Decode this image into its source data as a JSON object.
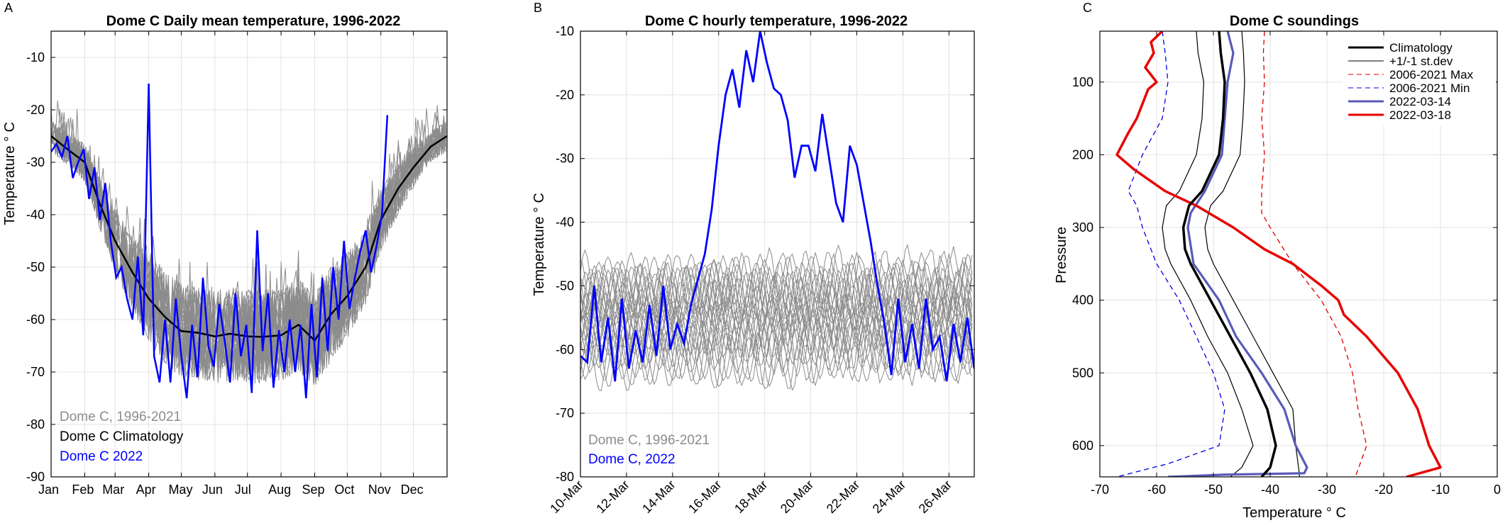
{
  "chart_data": [
    {
      "panel": "A",
      "type": "line",
      "title": "Dome C Daily mean temperature, 1996-2022",
      "xlabel": "",
      "ylabel": "Temperature ° C",
      "xlim": [
        0,
        365
      ],
      "ylim": [
        -90,
        -5
      ],
      "yticks": [
        -90,
        -80,
        -70,
        -60,
        -50,
        -40,
        -30,
        -20,
        -10
      ],
      "xticks": [
        {
          "x": 0,
          "label": "Jan"
        },
        {
          "x": 31,
          "label": "Feb"
        },
        {
          "x": 59,
          "label": "Mar"
        },
        {
          "x": 90,
          "label": "Apr"
        },
        {
          "x": 120,
          "label": "May"
        },
        {
          "x": 151,
          "label": "Jun"
        },
        {
          "x": 181,
          "label": "Jul"
        },
        {
          "x": 212,
          "label": "Aug"
        },
        {
          "x": 243,
          "label": "Sep"
        },
        {
          "x": 273,
          "label": "Oct"
        },
        {
          "x": 304,
          "label": "Nov"
        },
        {
          "x": 334,
          "label": "Dec"
        }
      ],
      "grid": true,
      "legend": {
        "placement": "bottom-left",
        "entries": [
          {
            "label": "Dome C, 1996-2021",
            "color": "#8c8c8c"
          },
          {
            "label": "Dome C Climatology",
            "color": "#000000"
          },
          {
            "label": "Dome C 2022",
            "color": "#0000ff"
          }
        ]
      },
      "series": [
        {
          "name": "Dome C Climatology",
          "color": "#000000",
          "x": [
            0,
            15,
            31,
            45,
            59,
            75,
            90,
            105,
            120,
            135,
            151,
            165,
            181,
            195,
            212,
            228,
            243,
            258,
            273,
            290,
            304,
            320,
            334,
            350,
            365
          ],
          "y": [
            -25,
            -27.5,
            -30,
            -38,
            -45,
            -51,
            -56,
            -59.5,
            -62.2,
            -62.5,
            -63.2,
            -62.7,
            -63.2,
            -63.3,
            -63,
            -61,
            -64,
            -59,
            -55.5,
            -50,
            -41,
            -35,
            -31,
            -27,
            -25
          ]
        },
        {
          "name": "Dome C 2022",
          "color": "#0000ff",
          "x": [
            0,
            5,
            10,
            15,
            20,
            25,
            30,
            35,
            40,
            45,
            50,
            55,
            60,
            65,
            70,
            75,
            80,
            85,
            90,
            95,
            100,
            105,
            110,
            115,
            120,
            125,
            130,
            135,
            140,
            145,
            150,
            155,
            160,
            165,
            170,
            175,
            180,
            185,
            190,
            195,
            200,
            205,
            210,
            215,
            220,
            225,
            230,
            235,
            240,
            245,
            250,
            255,
            260,
            265,
            270,
            275,
            280,
            285,
            290,
            295,
            300,
            305,
            310
          ],
          "y": [
            -28,
            -26.5,
            -29,
            -25,
            -33,
            -30,
            -27.5,
            -37,
            -31,
            -41,
            -34,
            -45,
            -52,
            -50,
            -56,
            -60,
            -48,
            -63,
            -15,
            -67,
            -72,
            -60,
            -72,
            -56,
            -67,
            -75,
            -61,
            -71,
            -52,
            -65,
            -69,
            -57,
            -64,
            -72,
            -55,
            -67,
            -61,
            -74,
            -43,
            -66,
            -55,
            -73,
            -62,
            -70,
            -60,
            -70,
            -61,
            -75,
            -57,
            -71,
            -52,
            -66,
            -50,
            -60,
            -45,
            -58,
            -52,
            -47,
            -43,
            -51,
            -46,
            -40,
            -21
          ]
        }
      ]
    },
    {
      "panel": "B",
      "type": "line",
      "title": "Dome C hourly temperature, 1996-2022",
      "xlabel": "",
      "ylabel": "Temperature ° C",
      "xlim": [
        10,
        27.1
      ],
      "ylim": [
        -80,
        -10
      ],
      "yticks": [
        -80,
        -70,
        -60,
        -50,
        -40,
        -30,
        -20,
        -10
      ],
      "xticks": [
        {
          "x": 10,
          "label": "10-Mar"
        },
        {
          "x": 12,
          "label": "12-Mar"
        },
        {
          "x": 14,
          "label": "14-Mar"
        },
        {
          "x": 16,
          "label": "16-Mar"
        },
        {
          "x": 18,
          "label": "18-Mar"
        },
        {
          "x": 20,
          "label": "20-Mar"
        },
        {
          "x": 22,
          "label": "22-Mar"
        },
        {
          "x": 24,
          "label": "24-Mar"
        },
        {
          "x": 26,
          "label": "26-Mar"
        }
      ],
      "grid": true,
      "legend": {
        "placement": "bottom-left",
        "entries": [
          {
            "label": "Dome C, 1996-2021",
            "color": "#8c8c8c"
          },
          {
            "label": "Dome C, 2022",
            "color": "#0000ff"
          }
        ]
      },
      "series": [
        {
          "name": "Dome C, 2022",
          "color": "#0000ff",
          "x": [
            10,
            10.3,
            10.6,
            10.9,
            11.2,
            11.5,
            11.8,
            12.1,
            12.4,
            12.7,
            13,
            13.3,
            13.6,
            13.9,
            14.2,
            14.5,
            14.8,
            15.1,
            15.4,
            15.7,
            16,
            16.3,
            16.6,
            16.9,
            17.2,
            17.5,
            17.8,
            18.1,
            18.4,
            18.7,
            19,
            19.3,
            19.6,
            19.9,
            20.2,
            20.5,
            20.8,
            21.1,
            21.4,
            21.7,
            22,
            22.3,
            22.6,
            22.9,
            23.2,
            23.5,
            23.8,
            24.1,
            24.4,
            24.7,
            25,
            25.3,
            25.6,
            25.9,
            26.2,
            26.5,
            26.8,
            27.1
          ],
          "y": [
            -61,
            -62,
            -50,
            -62,
            -55,
            -65,
            -52,
            -63,
            -57,
            -62,
            -53,
            -61,
            -50,
            -60,
            -56,
            -59,
            -53,
            -49,
            -45,
            -38,
            -28,
            -20,
            -16,
            -22,
            -13,
            -18,
            -10,
            -15,
            -19,
            -20,
            -24,
            -33,
            -28,
            -28,
            -32,
            -23,
            -30,
            -37,
            -40,
            -28,
            -31,
            -37,
            -43,
            -50,
            -56,
            -64,
            -52,
            -62,
            -56,
            -63,
            -52,
            -60,
            -58,
            -65,
            -56,
            -62,
            -55,
            -63
          ]
        }
      ]
    },
    {
      "panel": "C",
      "type": "line",
      "title": "Dome C soundings",
      "xlabel": "Temperature ° C",
      "ylabel": "Pressure",
      "xlim": [
        -70,
        0
      ],
      "ylim": [
        643,
        30
      ],
      "y_reversed": true,
      "xticks": [
        -70,
        -60,
        -50,
        -40,
        -30,
        -20,
        -10,
        0
      ],
      "yticks": [
        100,
        200,
        300,
        400,
        500,
        600
      ],
      "grid": true,
      "legend": {
        "placement": "top-right"
      },
      "series": [
        {
          "name": "Climatology",
          "color": "#000000",
          "y": [
            30,
            60,
            100,
            150,
            200,
            250,
            270,
            300,
            330,
            350,
            400,
            450,
            500,
            550,
            600,
            630,
            643
          ],
          "x": [
            -49,
            -48.7,
            -48,
            -48.3,
            -49,
            -52,
            -54.3,
            -55.3,
            -55,
            -54,
            -50.5,
            -47,
            -43.5,
            -40.5,
            -39,
            -40,
            -41.5
          ]
        },
        {
          "name": "+1/-1 st.dev",
          "color": "#000000",
          "y": [
            30,
            60,
            100,
            150,
            200,
            250,
            270,
            300,
            330,
            350,
            400,
            450,
            500,
            550,
            600,
            630,
            643
          ],
          "x": [
            -45,
            -44.7,
            -44.5,
            -44.8,
            -45.3,
            -48.3,
            -50.5,
            -51.5,
            -51,
            -50,
            -46.5,
            -43,
            -39.5,
            -36,
            -35.5,
            -35,
            -34.8
          ]
        },
        {
          "name": "+1/-1 st.dev lower",
          "color": "#000000",
          "y": [
            30,
            60,
            100,
            150,
            200,
            250,
            270,
            300,
            330,
            350,
            400,
            450,
            500,
            550,
            600,
            630,
            643
          ],
          "x": [
            -53,
            -52.7,
            -51.7,
            -52,
            -53,
            -56,
            -58.3,
            -59,
            -58.5,
            -57.5,
            -54,
            -51,
            -47.5,
            -45,
            -43,
            -45,
            -47
          ]
        },
        {
          "name": "2006-2021 Max",
          "color": "#e00000",
          "y": [
            30,
            60,
            100,
            150,
            200,
            250,
            280,
            300,
            350,
            400,
            450,
            500,
            550,
            600,
            643
          ],
          "x": [
            -41,
            -41.2,
            -41,
            -41.5,
            -41,
            -41.5,
            -41.5,
            -40,
            -36,
            -31,
            -27.5,
            -25.5,
            -24.5,
            -23,
            -25
          ]
        },
        {
          "name": "2006-2021 Min",
          "color": "#0000e6",
          "y": [
            30,
            60,
            100,
            150,
            200,
            250,
            270,
            300,
            350,
            400,
            450,
            500,
            550,
            600,
            625,
            643
          ],
          "x": [
            -59,
            -58.5,
            -58,
            -59,
            -62.5,
            -65,
            -63.5,
            -62.5,
            -60,
            -56,
            -53,
            -50,
            -48,
            -49,
            -58,
            -67
          ]
        },
        {
          "name": "2022-03-14",
          "color": "#5a5ab8",
          "y": [
            30,
            60,
            100,
            150,
            200,
            250,
            280,
            300,
            350,
            400,
            450,
            500,
            550,
            600,
            630,
            638,
            640,
            643
          ],
          "x": [
            -47.5,
            -46.5,
            -47.5,
            -48,
            -48.5,
            -51.5,
            -54,
            -54.5,
            -53.5,
            -49,
            -46,
            -41.5,
            -37.5,
            -35.5,
            -33.5,
            -34,
            -48,
            -58
          ]
        },
        {
          "name": "2022-03-18",
          "color": "#e80000",
          "y": [
            30,
            45,
            60,
            80,
            100,
            110,
            150,
            170,
            200,
            220,
            250,
            270,
            300,
            330,
            350,
            380,
            400,
            420,
            450,
            500,
            550,
            600,
            630,
            643
          ],
          "x": [
            -59,
            -61,
            -60.5,
            -62,
            -60,
            -61.5,
            -63.5,
            -65,
            -67,
            -64,
            -58.5,
            -53,
            -46.5,
            -41,
            -36,
            -31,
            -28,
            -27,
            -23,
            -17.5,
            -14,
            -12,
            -10,
            -16
          ]
        }
      ]
    }
  ],
  "panel_letters": {
    "a": "A",
    "b": "B",
    "c": "C"
  },
  "legend_c": [
    {
      "label": "Climatology",
      "color": "#000000",
      "dash": false,
      "width": 3
    },
    {
      "label": "+1/-1 st.dev",
      "color": "#000000",
      "dash": false,
      "width": 1
    },
    {
      "label": "2006-2021 Max",
      "color": "#e00000",
      "dash": true,
      "width": 1
    },
    {
      "label": "2006-2021 Min",
      "color": "#0000e6",
      "dash": true,
      "width": 1
    },
    {
      "label": "2022-03-14",
      "color": "#5a5ab8",
      "dash": false,
      "width": 3
    },
    {
      "label": "2022-03-18",
      "color": "#e80000",
      "dash": false,
      "width": 3
    }
  ]
}
